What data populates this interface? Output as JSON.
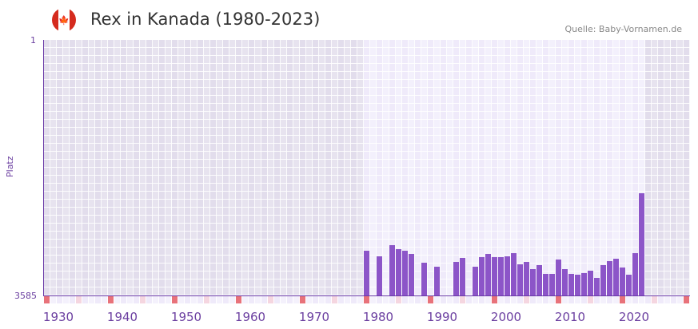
{
  "header": {
    "title": "Rex in Kanada (1980-2023)",
    "source": "Quelle: Baby-Vornamen.de",
    "flag_icon": "canada-flag-icon"
  },
  "colors": {
    "bar": "#8c55c8",
    "axis": "#6a3aa8",
    "decade_marker": "#e8727a",
    "half_decade_marker": "#f5d6e0"
  },
  "chart_data": {
    "type": "bar",
    "title": "Rex in Kanada (1980-2023)",
    "ylabel": "Platz",
    "ylim": [
      3585,
      1
    ],
    "y_ticks": [
      "1",
      "3585"
    ],
    "x_range": [
      1930,
      2030
    ],
    "x_ticks": [
      "1930",
      "1940",
      "1950",
      "1960",
      "1970",
      "1980",
      "1990",
      "2000",
      "2010",
      "2020"
    ],
    "data_years": [
      1980,
      2023
    ],
    "points": [
      {
        "year": 1980,
        "rank": 2958
      },
      {
        "year": 1982,
        "rank": 3036
      },
      {
        "year": 1984,
        "rank": 2879
      },
      {
        "year": 1985,
        "rank": 2935
      },
      {
        "year": 1986,
        "rank": 2958
      },
      {
        "year": 1987,
        "rank": 3003
      },
      {
        "year": 1989,
        "rank": 3126
      },
      {
        "year": 1991,
        "rank": 3182
      },
      {
        "year": 1994,
        "rank": 3115
      },
      {
        "year": 1995,
        "rank": 3059
      },
      {
        "year": 1997,
        "rank": 3182
      },
      {
        "year": 1998,
        "rank": 3047
      },
      {
        "year": 1999,
        "rank": 3003
      },
      {
        "year": 2000,
        "rank": 3047
      },
      {
        "year": 2001,
        "rank": 3047
      },
      {
        "year": 2002,
        "rank": 3036
      },
      {
        "year": 2003,
        "rank": 2991
      },
      {
        "year": 2004,
        "rank": 3148
      },
      {
        "year": 2005,
        "rank": 3115
      },
      {
        "year": 2006,
        "rank": 3215
      },
      {
        "year": 2007,
        "rank": 3159
      },
      {
        "year": 2008,
        "rank": 3283
      },
      {
        "year": 2009,
        "rank": 3283
      },
      {
        "year": 2010,
        "rank": 3081
      },
      {
        "year": 2011,
        "rank": 3215
      },
      {
        "year": 2012,
        "rank": 3283
      },
      {
        "year": 2013,
        "rank": 3294
      },
      {
        "year": 2014,
        "rank": 3271
      },
      {
        "year": 2015,
        "rank": 3238
      },
      {
        "year": 2016,
        "rank": 3339
      },
      {
        "year": 2017,
        "rank": 3159
      },
      {
        "year": 2018,
        "rank": 3103
      },
      {
        "year": 2019,
        "rank": 3070
      },
      {
        "year": 2020,
        "rank": 3193
      },
      {
        "year": 2021,
        "rank": 3294
      },
      {
        "year": 2022,
        "rank": 2991
      },
      {
        "year": 2023,
        "rank": 2151
      }
    ]
  }
}
